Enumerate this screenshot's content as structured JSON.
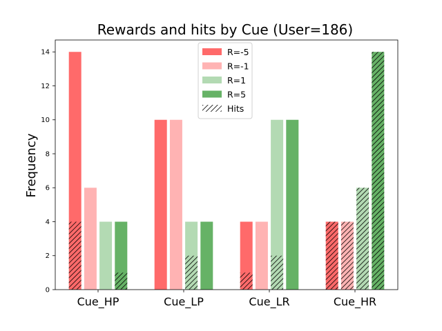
{
  "chart_data": {
    "type": "bar",
    "title": "Rewards and hits by Cue (User=186)",
    "xlabel": "",
    "ylabel": "Frequency",
    "ylim": [
      0,
      14.7
    ],
    "yticks": [
      0,
      2,
      4,
      6,
      8,
      10,
      12,
      14
    ],
    "categories": [
      "Cue_HP",
      "Cue_LP",
      "Cue_LR",
      "Cue_HR"
    ],
    "series": [
      {
        "name": "R=-5",
        "color": "#ff6a6a",
        "values": [
          14,
          10,
          4,
          4
        ],
        "hits": [
          4,
          0,
          1,
          4
        ]
      },
      {
        "name": "R=-1",
        "color": "#ffb3b3",
        "values": [
          6,
          10,
          4,
          4
        ],
        "hits": [
          0,
          0,
          0,
          4
        ]
      },
      {
        "name": "R=1",
        "color": "#b3dab3",
        "values": [
          4,
          4,
          10,
          6
        ],
        "hits": [
          0,
          2,
          2,
          6
        ]
      },
      {
        "name": "R=5",
        "color": "#66b266",
        "values": [
          4,
          4,
          10,
          14
        ],
        "hits": [
          1,
          0,
          0,
          14
        ]
      }
    ],
    "hits_legend_label": "Hits",
    "legend_position": "top-center",
    "grid": false
  }
}
